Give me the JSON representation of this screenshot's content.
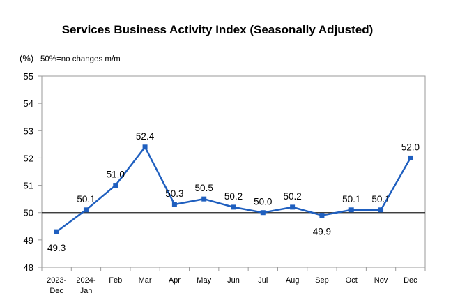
{
  "chart_data": {
    "type": "line",
    "title": "Services Business Activity Index (Seasonally Adjusted)",
    "unit_label": "(%)",
    "note": "50%=no changes m/m",
    "categories": [
      [
        "2023-",
        "Dec"
      ],
      [
        "2024-",
        "Jan"
      ],
      [
        "Feb"
      ],
      [
        "Mar"
      ],
      [
        "Apr"
      ],
      [
        "May"
      ],
      [
        "Jun"
      ],
      [
        "Jul"
      ],
      [
        "Aug"
      ],
      [
        "Sep"
      ],
      [
        "Oct"
      ],
      [
        "Nov"
      ],
      [
        "Dec"
      ]
    ],
    "values": [
      49.3,
      50.1,
      51.0,
      52.4,
      50.3,
      50.5,
      50.2,
      50.0,
      50.2,
      49.9,
      50.1,
      50.1,
      52.0
    ],
    "data_labels": [
      "49.3",
      "50.1",
      "51.0",
      "52.4",
      "50.3",
      "50.5",
      "50.2",
      "50.0",
      "50.2",
      "49.9",
      "50.1",
      "50.1",
      "52.0"
    ],
    "label_position": [
      "below",
      "above",
      "above",
      "above",
      "above",
      "above",
      "above",
      "above",
      "above",
      "below",
      "above",
      "above",
      "above"
    ],
    "ylim": [
      48,
      55
    ],
    "yticks": [
      "48",
      "49",
      "50",
      "51",
      "52",
      "53",
      "54",
      "55"
    ],
    "reference_line": 50,
    "line_color": "#1f5fbf",
    "grid": false,
    "legend": "none"
  }
}
